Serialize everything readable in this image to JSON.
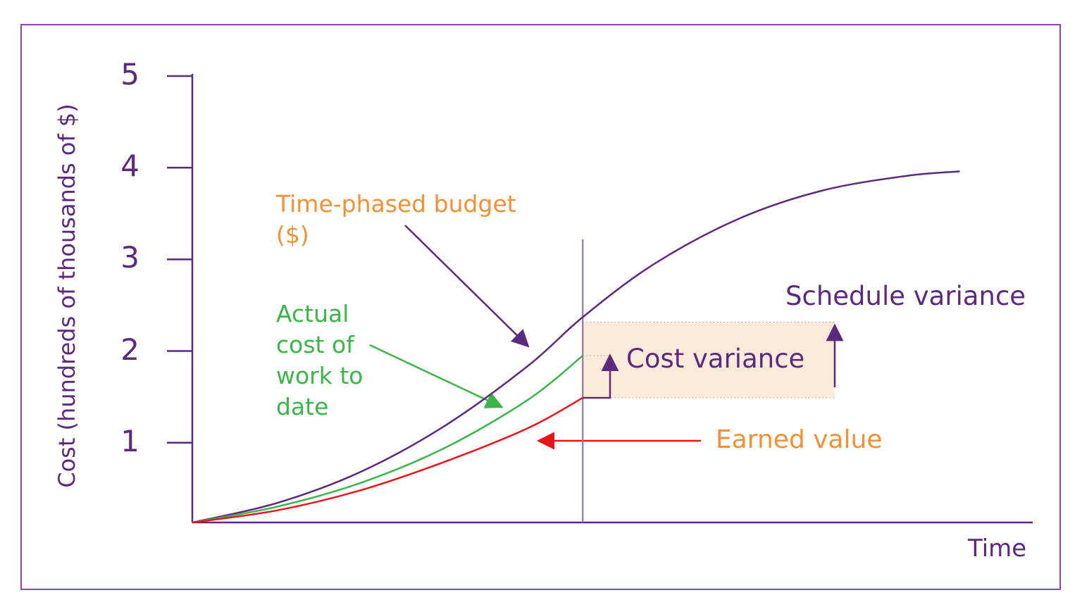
{
  "chart_data": {
    "type": "line",
    "y_label": "Cost (hundreds of thousands of $)",
    "x_label": "Time",
    "xlim": [
      0,
      100
    ],
    "ylim": [
      0.13,
      5
    ],
    "yticks": [
      1,
      2,
      3,
      4,
      5
    ],
    "series": [
      {
        "name": "Time-phased budget ($)",
        "color": "#5b2a7e",
        "label_color": "#f0913a",
        "x": [
          0,
          10,
          20,
          30,
          40,
          46.5,
          55,
          65,
          75,
          85,
          91.4
        ],
        "values": [
          0.13,
          0.34,
          0.68,
          1.18,
          1.84,
          2.37,
          2.95,
          3.44,
          3.75,
          3.91,
          3.96
        ]
      },
      {
        "name": "Actual cost of work to date",
        "color": "#3cb44a",
        "label_color": "#3cb44a",
        "x": [
          0,
          10,
          20,
          30,
          40,
          46.5
        ],
        "values": [
          0.13,
          0.3,
          0.56,
          0.94,
          1.47,
          1.95
        ]
      },
      {
        "name": "Earned value",
        "color": "#e8141b",
        "label_color": "#f0913a",
        "x": [
          0,
          10,
          20,
          30,
          40,
          46.5
        ],
        "values": [
          0.13,
          0.26,
          0.48,
          0.79,
          1.16,
          1.49
        ]
      }
    ],
    "annotations": [
      "Cost variance",
      "Schedule variance"
    ]
  }
}
